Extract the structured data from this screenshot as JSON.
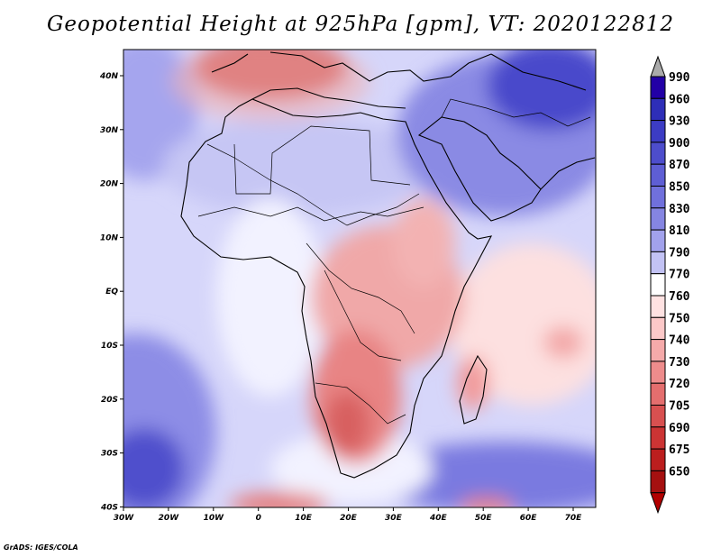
{
  "title": "Geopotential Height at 925hPa [gpm], VT: 2020122812",
  "credit": "GrADS: IGES/COLA",
  "map": {
    "lon_ticks": [
      "30W",
      "20W",
      "10W",
      "0",
      "10E",
      "20E",
      "30E",
      "40E",
      "50E",
      "60E",
      "70E"
    ],
    "lat_ticks": [
      "40N",
      "30N",
      "20N",
      "10N",
      "EQ",
      "10S",
      "20S",
      "30S",
      "40S"
    ],
    "lon_range": [
      -30,
      75
    ],
    "lat_range": [
      -40,
      44
    ],
    "background_color": "#d6d6fa"
  },
  "colorbar": {
    "levels": [
      "990",
      "960",
      "930",
      "900",
      "870",
      "850",
      "830",
      "810",
      "790",
      "770",
      "760",
      "750",
      "740",
      "730",
      "720",
      "705",
      "690",
      "675",
      "650"
    ],
    "colors": [
      "#2200a6",
      "#2e2eb8",
      "#3c3cc4",
      "#4d4dcc",
      "#5e5ed4",
      "#7070dc",
      "#8585e2",
      "#a2a2ec",
      "#c2c2f4",
      "#ffffff",
      "#ffe2e2",
      "#fcc8c8",
      "#f5aaaa",
      "#ee8c8c",
      "#e46e6e",
      "#d85050",
      "#cc3434",
      "#bb1e1e",
      "#a51010"
    ],
    "top_arrow_color": "#aaaaaa",
    "bottom_arrow_color": "#b20000"
  }
}
